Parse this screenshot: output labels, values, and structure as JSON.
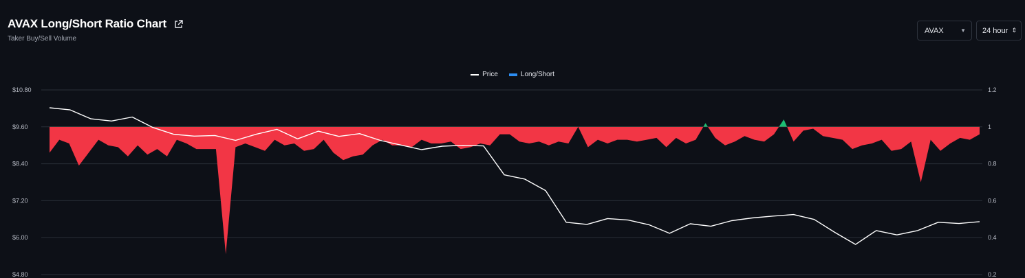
{
  "header": {
    "title": "AVAX Long/Short Ratio Chart",
    "subtitle": "Taker Buy/Sell Volume"
  },
  "controls": {
    "symbol": "AVAX",
    "interval": "24 hour"
  },
  "legend": {
    "price_label": "Price",
    "ratio_label": "Long/Short"
  },
  "colors": {
    "background": "#0d1017",
    "grid": "#2a2f38",
    "price_line": "#ffffff",
    "short_fill": "#f23645",
    "long_fill": "#1cbf73",
    "legend_ratio": "#2d8ef3"
  },
  "chart_data": {
    "type": "area",
    "left_axis": {
      "ticks": [
        "$10.80",
        "$9.60",
        "$8.40",
        "$7.20",
        "$6.00",
        "$4.80"
      ],
      "range": [
        4.8,
        10.8
      ]
    },
    "right_axis": {
      "ticks": [
        "1.2",
        "1",
        "0.8",
        "0.6",
        "0.4",
        "0.2"
      ],
      "range": [
        0.2,
        1.2
      ]
    },
    "baseline_ratio": 1.0,
    "series": [
      {
        "name": "Price",
        "axis": "left",
        "values": [
          10.22,
          10.15,
          9.86,
          9.79,
          9.92,
          9.58,
          9.36,
          9.3,
          9.32,
          9.16,
          9.36,
          9.52,
          9.21,
          9.46,
          9.29,
          9.38,
          9.16,
          9.01,
          8.86,
          8.97,
          9.0,
          8.98,
          8.04,
          7.9,
          7.53,
          6.5,
          6.43,
          6.62,
          6.57,
          6.42,
          6.14,
          6.45,
          6.37,
          6.55,
          6.64,
          6.7,
          6.75,
          6.59,
          6.17,
          5.78,
          6.23,
          6.09,
          6.23,
          6.5,
          6.46,
          6.52
        ]
      },
      {
        "name": "Long/Short",
        "axis": "right",
        "values": [
          0.86,
          0.93,
          0.91,
          0.79,
          0.86,
          0.93,
          0.9,
          0.89,
          0.84,
          0.9,
          0.85,
          0.88,
          0.84,
          0.93,
          0.91,
          0.88,
          0.88,
          0.88,
          0.31,
          0.89,
          0.91,
          0.89,
          0.87,
          0.93,
          0.9,
          0.91,
          0.87,
          0.88,
          0.93,
          0.86,
          0.82,
          0.84,
          0.85,
          0.9,
          0.93,
          0.9,
          0.9,
          0.89,
          0.93,
          0.91,
          0.91,
          0.92,
          0.88,
          0.89,
          0.91,
          0.9,
          0.96,
          0.96,
          0.92,
          0.91,
          0.92,
          0.9,
          0.92,
          0.91,
          1.0,
          0.89,
          0.93,
          0.91,
          0.93,
          0.93,
          0.92,
          0.93,
          0.94,
          0.89,
          0.94,
          0.91,
          0.93,
          1.02,
          0.94,
          0.9,
          0.92,
          0.95,
          0.93,
          0.92,
          0.96,
          1.04,
          0.92,
          0.98,
          0.99,
          0.95,
          0.94,
          0.93,
          0.88,
          0.9,
          0.91,
          0.93,
          0.87,
          0.88,
          0.92,
          0.7,
          0.93,
          0.87,
          0.91,
          0.94,
          0.93,
          0.96
        ]
      }
    ]
  }
}
